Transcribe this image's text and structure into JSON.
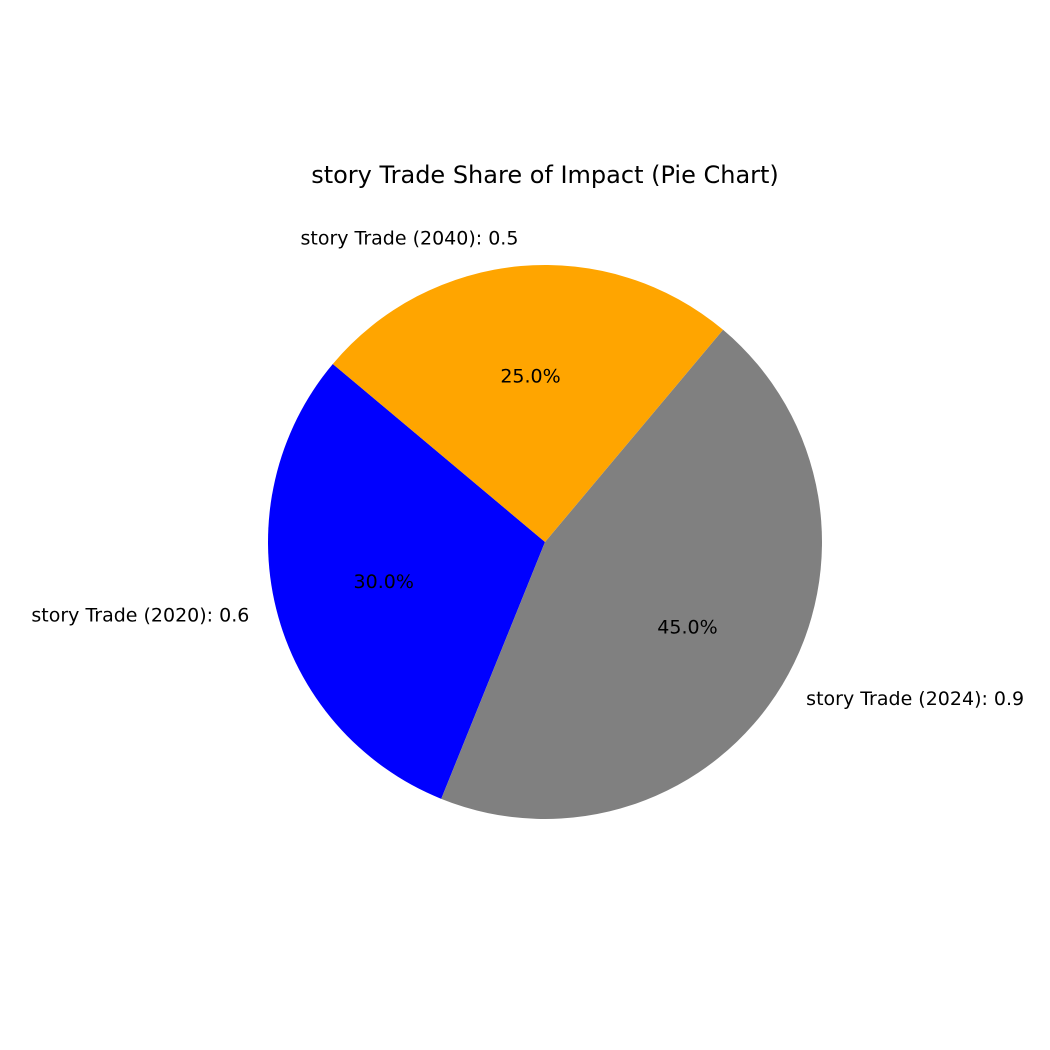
{
  "chart_data": {
    "type": "pie",
    "title": "story Trade Share of Impact (Pie Chart)",
    "slices": [
      {
        "label": "story Trade (2020): 0.6",
        "value": 0.6,
        "percent_label": "30.0%",
        "color": "#0000ff"
      },
      {
        "label": "story Trade (2024): 0.9",
        "value": 0.9,
        "percent_label": "45.0%",
        "color": "#808080"
      },
      {
        "label": "story Trade (2040): 0.5",
        "value": 0.5,
        "percent_label": "25.0%",
        "color": "#ffa500"
      }
    ],
    "start_angle_deg": 140,
    "direction": "counterclockwise",
    "legend": "none"
  }
}
